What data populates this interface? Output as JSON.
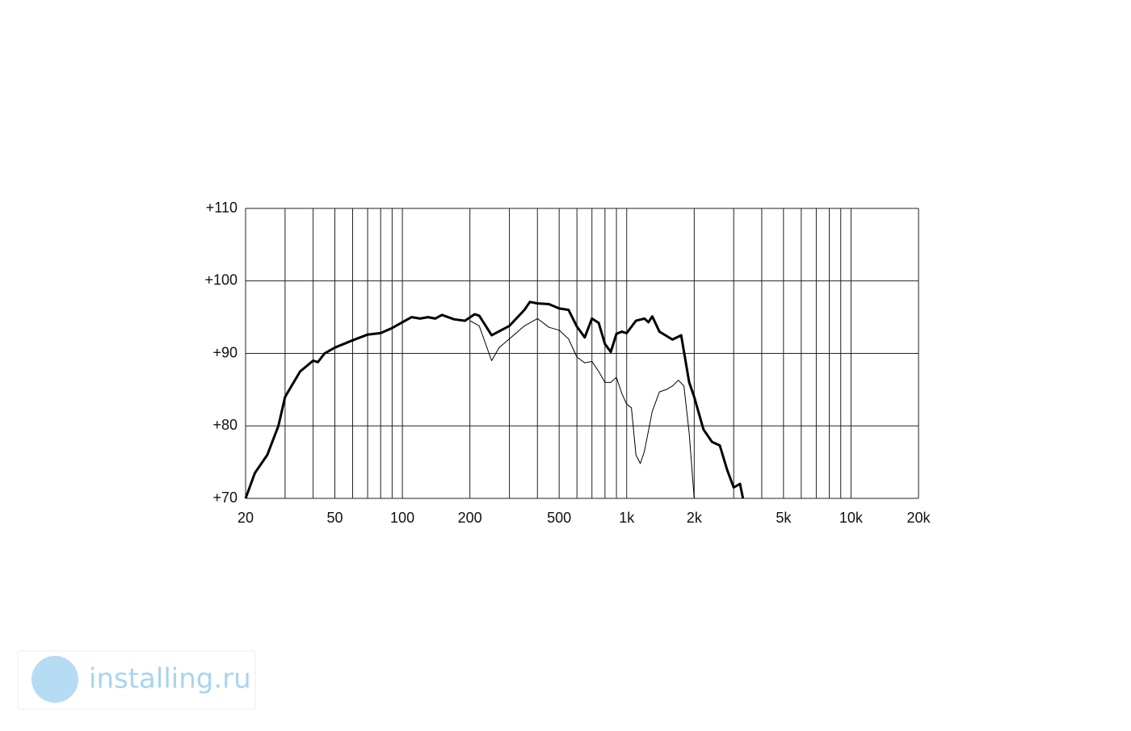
{
  "chart_data": {
    "type": "line",
    "xscale": "log",
    "grid": true,
    "xlim": [
      20,
      20000
    ],
    "ylim": [
      70,
      110
    ],
    "xticks": [
      20,
      50,
      100,
      200,
      500,
      {
        "value": 1000,
        "label": "1k"
      },
      {
        "value": 2000,
        "label": "2k"
      },
      {
        "value": 5000,
        "label": "5k"
      },
      {
        "value": 10000,
        "label": "10k"
      },
      {
        "value": 20000,
        "label": "20k"
      }
    ],
    "x_minor_ticks": [
      30,
      40,
      60,
      70,
      80,
      90,
      300,
      400,
      600,
      700,
      800,
      900,
      3000,
      4000,
      6000,
      7000,
      8000,
      9000
    ],
    "yticks": [
      {
        "value": 70,
        "label": "+70"
      },
      {
        "value": 80,
        "label": "+80"
      },
      {
        "value": 90,
        "label": "+90"
      },
      {
        "value": 100,
        "label": "+100"
      },
      {
        "value": 110,
        "label": "+110"
      }
    ],
    "series": [
      {
        "color": "#000000",
        "width": 3,
        "x": [
          20,
          22,
          25,
          28,
          30,
          35,
          40,
          42,
          45,
          50,
          60,
          70,
          80,
          90,
          100,
          110,
          120,
          130,
          140,
          150,
          170,
          190,
          210,
          220,
          250,
          300,
          350,
          370,
          400,
          450,
          500,
          550,
          600,
          650,
          700,
          750,
          800,
          850,
          900,
          950,
          1000,
          1100,
          1200,
          1250,
          1300,
          1400,
          1600,
          1750,
          1900,
          2000,
          2200,
          2400,
          2600,
          2800,
          3000,
          3200,
          3300
        ],
        "values": [
          70,
          73.5,
          76,
          80,
          84,
          87.5,
          89,
          88.8,
          90,
          90.8,
          91.8,
          92.6,
          92.8,
          93.5,
          94.3,
          95,
          94.8,
          95,
          94.8,
          95.3,
          94.7,
          94.5,
          95.4,
          95.2,
          92.5,
          93.8,
          96,
          97.1,
          96.9,
          96.8,
          96.2,
          96,
          93.7,
          92.2,
          94.8,
          94.2,
          91.3,
          90.2,
          92.7,
          93,
          92.8,
          94.5,
          94.8,
          94.3,
          95.1,
          93,
          91.9,
          92.5,
          86,
          84,
          79.5,
          77.8,
          77.3,
          74,
          71.5,
          72,
          70
        ]
      },
      {
        "color": "#000000",
        "width": 1,
        "x": [
          200,
          220,
          240,
          250,
          270,
          300,
          350,
          400,
          450,
          500,
          550,
          600,
          650,
          700,
          750,
          800,
          850,
          900,
          950,
          1000,
          1050,
          1100,
          1150,
          1200,
          1300,
          1400,
          1500,
          1600,
          1700,
          1800,
          1900,
          2000
        ],
        "values": [
          94.5,
          93.8,
          90.5,
          89,
          90.8,
          92,
          93.8,
          94.8,
          93.6,
          93.2,
          92,
          89.5,
          88.7,
          88.9,
          87.5,
          86,
          86,
          86.7,
          84.5,
          83,
          82.5,
          76,
          74.8,
          76.5,
          82,
          84.7,
          85,
          85.5,
          86.3,
          85.5,
          79,
          70
        ]
      }
    ]
  },
  "watermark": "installing.ru"
}
